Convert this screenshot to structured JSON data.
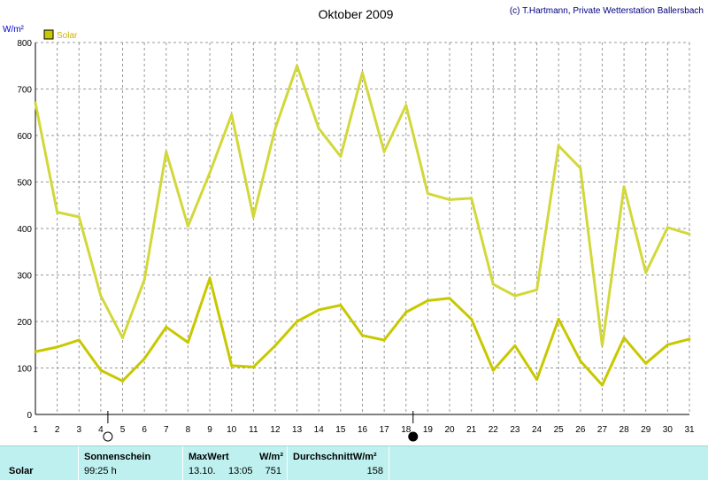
{
  "header": {
    "title": "Oktober 2009",
    "copyright": "(c) T.Hartmann, Private Wetterstation Ballersbach",
    "unit": "W/m²"
  },
  "legend": {
    "label": "Solar",
    "color": "#c8c800"
  },
  "chart_data": {
    "type": "line",
    "title": "Oktober 2009",
    "ylabel": "W/m²",
    "xlim": [
      1,
      31
    ],
    "ylim": [
      0,
      800
    ],
    "yticks": [
      0,
      100,
      200,
      300,
      400,
      500,
      600,
      700,
      800
    ],
    "categories": [
      1,
      2,
      3,
      4,
      5,
      6,
      7,
      8,
      9,
      10,
      11,
      12,
      13,
      14,
      15,
      16,
      17,
      18,
      19,
      20,
      21,
      22,
      23,
      24,
      25,
      26,
      27,
      28,
      29,
      30,
      31
    ],
    "series": [
      {
        "role": "max",
        "color": "#d2d83a",
        "values": [
          670,
          435,
          425,
          255,
          165,
          290,
          565,
          405,
          520,
          645,
          425,
          615,
          750,
          615,
          555,
          735,
          565,
          665,
          475,
          462,
          465,
          280,
          255,
          268,
          578,
          530,
          148,
          490,
          305,
          402,
          388
        ]
      },
      {
        "role": "avg",
        "color": "#c8c800",
        "values": [
          135,
          145,
          160,
          95,
          72,
          120,
          188,
          155,
          293,
          105,
          102,
          148,
          200,
          225,
          235,
          170,
          160,
          220,
          245,
          250,
          205,
          95,
          148,
          75,
          205,
          115,
          63,
          165,
          110,
          150,
          162
        ]
      }
    ],
    "grid": true,
    "moon_phases": [
      {
        "day": 4,
        "phase": "full-moon"
      },
      {
        "day": 18,
        "phase": "new-moon"
      }
    ]
  },
  "stats": {
    "row_label": "Solar",
    "sunshine_header": "Sonnenschein",
    "sunshine_value": "99:25 h",
    "max_header": "MaxWert",
    "max_unit": "W/m²",
    "max_date": "13.10.",
    "max_time": "13:05",
    "max_value": "751",
    "avg_header": "DurchschnittW/m²",
    "avg_value": "158"
  }
}
